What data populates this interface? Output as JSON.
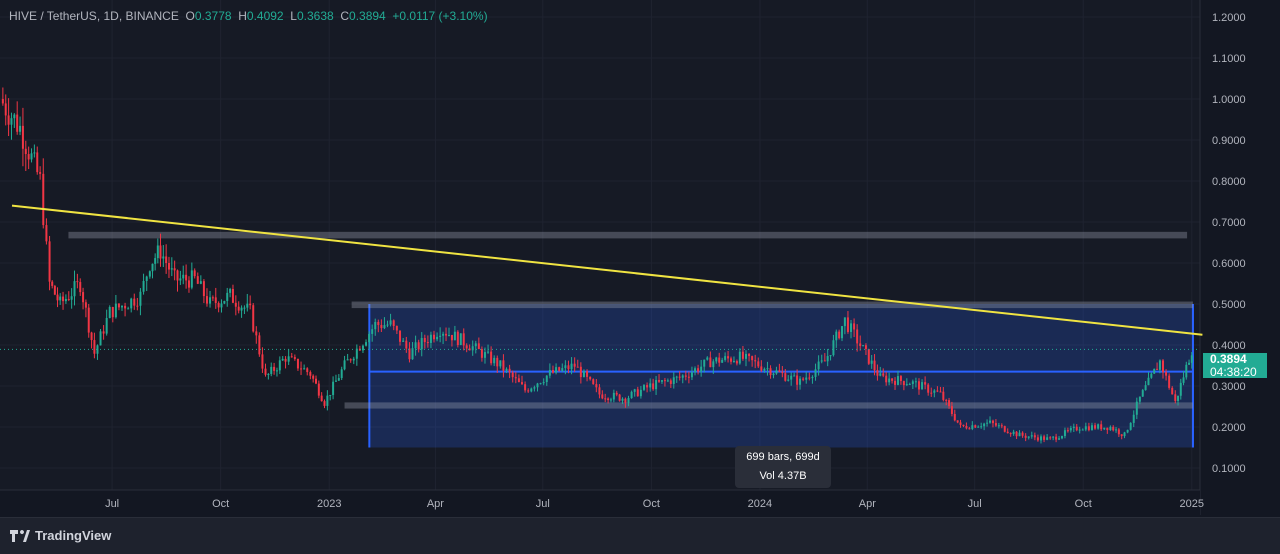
{
  "header": {
    "symbol": "HIVE / TetherUS, 1D, BINANCE",
    "o_label": "O",
    "open": "0.3778",
    "h_label": "H",
    "high": "0.4092",
    "l_label": "L",
    "low": "0.3638",
    "c_label": "C",
    "close": "0.3894",
    "change": "+0.0117 (+3.10%)"
  },
  "price_label": {
    "price": "0.3894",
    "countdown": "04:38:20"
  },
  "measure_tooltip": {
    "bars": "699 bars, 699d",
    "volume": "Vol 4.37B"
  },
  "footer": {
    "brand": "TradingView"
  },
  "colors": {
    "up": "#22ab94",
    "down": "#f23645",
    "trendline": "#f0e442",
    "measure": "#2962ff",
    "background": "#131722"
  },
  "chart_data": {
    "type": "candlestick",
    "ylim": [
      0.1,
      1.2
    ],
    "y_ticks": [
      "1.2000",
      "1.1000",
      "1.0000",
      "0.9000",
      "0.8000",
      "0.7000",
      "0.6000",
      "0.5000",
      "0.4000",
      "0.3000",
      "0.2000",
      "0.1000"
    ],
    "x_ticks": [
      "Jul",
      "Oct",
      "2023",
      "Apr",
      "Jul",
      "Oct",
      "2024",
      "Apr",
      "Jul",
      "Oct",
      "2025"
    ],
    "x_tick_dates": [
      "2022-07-01",
      "2022-10-01",
      "2023-01-01",
      "2023-04-01",
      "2023-07-01",
      "2023-10-01",
      "2024-01-01",
      "2024-04-01",
      "2024-07-01",
      "2024-10-01",
      "2025-01-01"
    ],
    "x_range": [
      "2022-03-28",
      "2025-01-10"
    ],
    "approx_close": [
      [
        "2022-03-28",
        1.0
      ],
      [
        "2022-04-14",
        0.93
      ],
      [
        "2022-05-01",
        0.8
      ],
      [
        "2022-05-09",
        0.55
      ],
      [
        "2022-05-18",
        0.5
      ],
      [
        "2022-06-04",
        0.55
      ],
      [
        "2022-06-16",
        0.38
      ],
      [
        "2022-06-29",
        0.48
      ],
      [
        "2022-07-12",
        0.5
      ],
      [
        "2022-07-25",
        0.52
      ],
      [
        "2022-08-02",
        0.6
      ],
      [
        "2022-08-11",
        0.63
      ],
      [
        "2022-08-23",
        0.56
      ],
      [
        "2022-09-09",
        0.56
      ],
      [
        "2022-09-22",
        0.5
      ],
      [
        "2022-10-09",
        0.52
      ],
      [
        "2022-10-26",
        0.48
      ],
      [
        "2022-11-08",
        0.32
      ],
      [
        "2022-11-25",
        0.37
      ],
      [
        "2022-12-16",
        0.33
      ],
      [
        "2022-12-28",
        0.26
      ],
      [
        "2023-01-14",
        0.35
      ],
      [
        "2023-01-27",
        0.4
      ],
      [
        "2023-02-09",
        0.45
      ],
      [
        "2023-02-22",
        0.45
      ],
      [
        "2023-03-10",
        0.38
      ],
      [
        "2023-04-05",
        0.44
      ],
      [
        "2023-04-30",
        0.4
      ],
      [
        "2023-05-26",
        0.35
      ],
      [
        "2023-06-16",
        0.29
      ],
      [
        "2023-07-07",
        0.33
      ],
      [
        "2023-07-28",
        0.35
      ],
      [
        "2023-08-18",
        0.28
      ],
      [
        "2023-09-09",
        0.27
      ],
      [
        "2023-09-30",
        0.3
      ],
      [
        "2023-10-25",
        0.32
      ],
      [
        "2023-11-20",
        0.36
      ],
      [
        "2023-12-15",
        0.37
      ],
      [
        "2024-01-10",
        0.34
      ],
      [
        "2024-02-04",
        0.31
      ],
      [
        "2024-02-25",
        0.36
      ],
      [
        "2024-03-13",
        0.46
      ],
      [
        "2024-03-26",
        0.4
      ],
      [
        "2024-04-12",
        0.32
      ],
      [
        "2024-05-07",
        0.31
      ],
      [
        "2024-06-02",
        0.28
      ],
      [
        "2024-06-19",
        0.2
      ],
      [
        "2024-07-14",
        0.21
      ],
      [
        "2024-08-08",
        0.18
      ],
      [
        "2024-09-03",
        0.17
      ],
      [
        "2024-09-28",
        0.2
      ],
      [
        "2024-10-24",
        0.2
      ],
      [
        "2024-11-05",
        0.18
      ],
      [
        "2024-11-18",
        0.27
      ],
      [
        "2024-12-05",
        0.36
      ],
      [
        "2024-12-18",
        0.26
      ],
      [
        "2025-01-01",
        0.3894
      ]
    ],
    "drawings": {
      "trendline": {
        "from": [
          "2022-03-28",
          0.74
        ],
        "to": [
          "2025-01-10",
          0.425
        ]
      },
      "zones": [
        {
          "from": "2022-05-25",
          "to": "2024-12-28",
          "low": 0.66,
          "high": 0.676
        },
        {
          "from": "2023-01-20",
          "to": "2025-01-02",
          "low": 0.49,
          "high": 0.506
        },
        {
          "from": "2023-01-14",
          "to": "2025-01-02",
          "low": 0.245,
          "high": 0.26
        }
      ],
      "date_range_measure": {
        "from": "2023-02-04",
        "to": "2025-01-02",
        "low": 0.15,
        "high": 0.5,
        "level": 0.335
      }
    }
  }
}
